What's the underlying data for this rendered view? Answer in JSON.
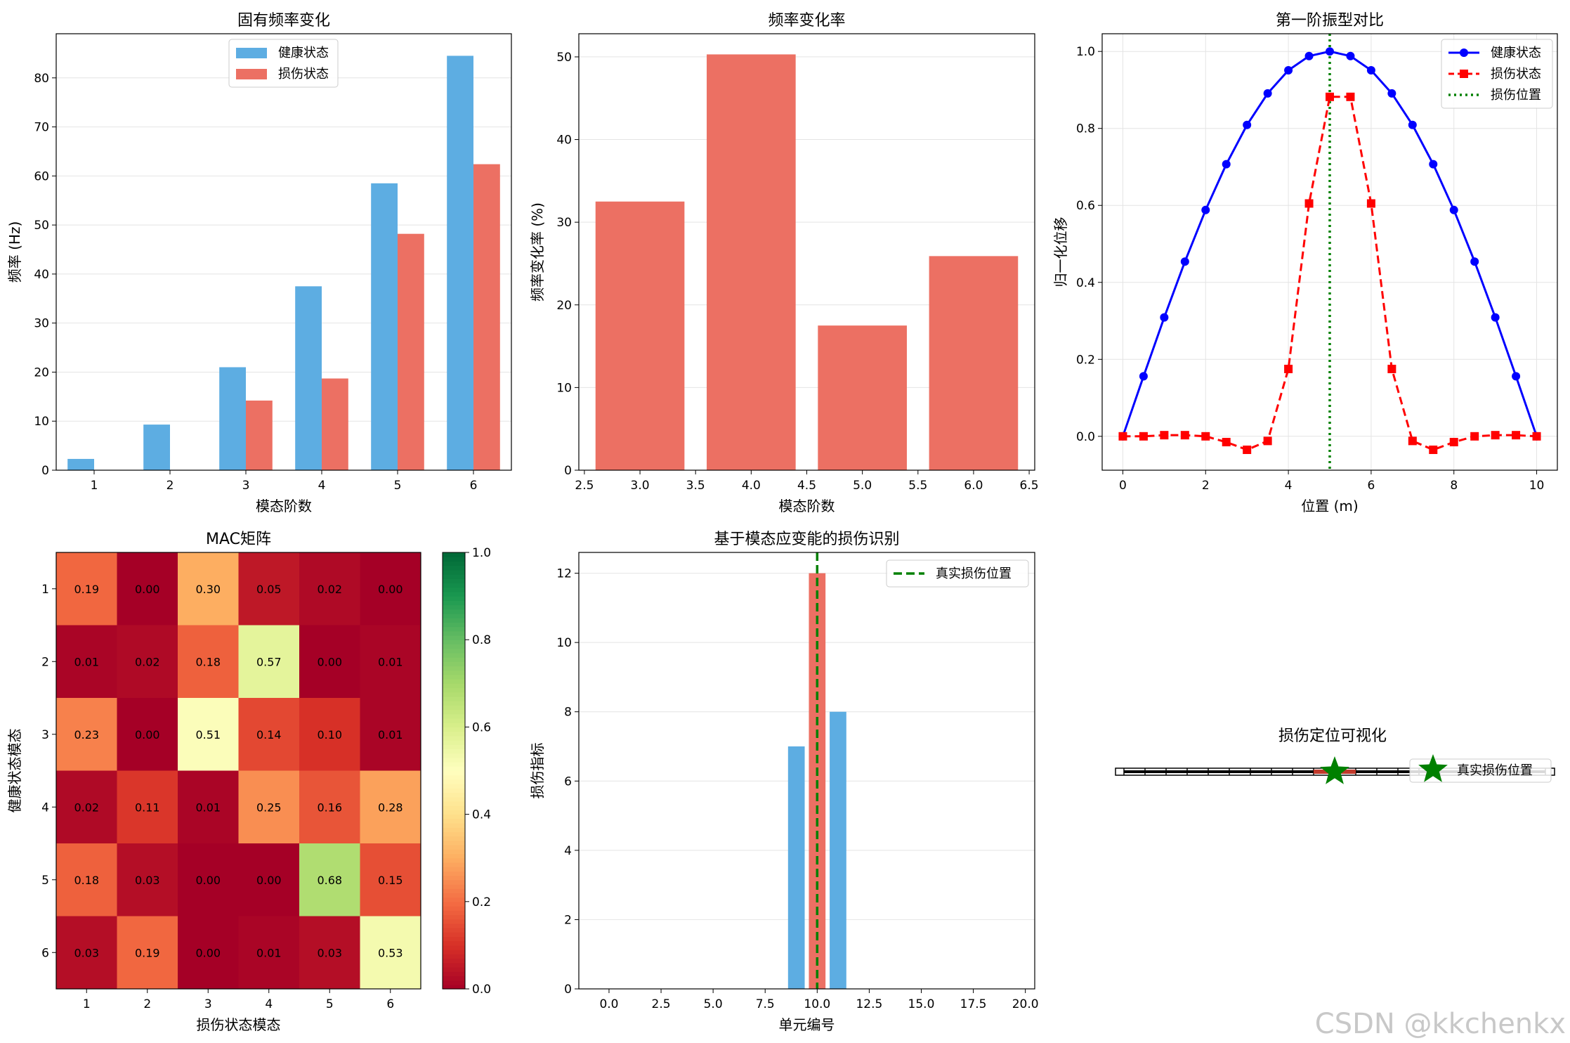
{
  "watermark": "CSDN @kkchenkx",
  "chart_data": [
    {
      "type": "bar",
      "title": "固有频率变化",
      "xlabel": "模态阶数",
      "ylabel": "频率 (Hz)",
      "categories": [
        "1",
        "2",
        "3",
        "4",
        "5",
        "6"
      ],
      "ylim": [
        0,
        89
      ],
      "yticks": [
        0,
        10,
        20,
        30,
        40,
        50,
        60,
        70,
        80
      ],
      "grid": "y",
      "legend": "top-center",
      "series": [
        {
          "name": "健康状态",
          "color": "#5DADE2",
          "values": [
            2.3,
            9.3,
            21.0,
            37.5,
            58.5,
            84.5
          ]
        },
        {
          "name": "损伤状态",
          "color": "#EC7063",
          "values": [
            0.0,
            0.0,
            14.2,
            18.7,
            48.2,
            62.4
          ]
        }
      ]
    },
    {
      "type": "bar",
      "title": "频率变化率",
      "xlabel": "模态阶数",
      "ylabel": "频率变化率 (%)",
      "x": [
        3,
        4,
        5,
        6
      ],
      "values": [
        32.5,
        50.3,
        17.5,
        25.9
      ],
      "color": "#EC7063",
      "xlim": [
        2.45,
        6.55
      ],
      "xticks": [
        "2.5",
        "3.0",
        "3.5",
        "4.0",
        "4.5",
        "5.0",
        "5.5",
        "6.0",
        "6.5"
      ],
      "ylim": [
        0,
        52.8
      ],
      "yticks": [
        0,
        10,
        20,
        30,
        40,
        50
      ],
      "grid": "y"
    },
    {
      "type": "line",
      "title": "第一阶振型对比",
      "xlabel": "位置 (m)",
      "ylabel": "归一化位移",
      "xlim": [
        -0.5,
        10.5
      ],
      "ylim": [
        -0.088,
        1.046
      ],
      "xticks": [
        0,
        2,
        4,
        6,
        8,
        10
      ],
      "yticks": [
        "0.0",
        "0.2",
        "0.4",
        "0.6",
        "0.8",
        "1.0"
      ],
      "grid": "both",
      "legend": "top-right",
      "x": [
        0,
        0.5,
        1,
        1.5,
        2,
        2.5,
        3,
        3.5,
        4,
        4.5,
        5,
        5.5,
        6,
        6.5,
        7,
        7.5,
        8,
        8.5,
        9,
        9.5,
        10
      ],
      "series": [
        {
          "name": "健康状态",
          "color": "#0000ff",
          "style": "solid",
          "marker": "circle",
          "values": [
            0.0,
            0.156,
            0.309,
            0.454,
            0.588,
            0.707,
            0.809,
            0.891,
            0.951,
            0.988,
            1.0,
            0.988,
            0.951,
            0.891,
            0.809,
            0.707,
            0.588,
            0.454,
            0.309,
            0.156,
            0.0
          ]
        },
        {
          "name": "损伤状态",
          "color": "#ff0000",
          "style": "dashed",
          "marker": "square",
          "values": [
            0.0,
            0.0,
            0.003,
            0.003,
            0.0,
            -0.015,
            -0.035,
            -0.012,
            0.175,
            0.605,
            0.882,
            0.882,
            0.605,
            0.175,
            -0.012,
            -0.035,
            -0.015,
            0.0,
            0.003,
            0.003,
            0.0
          ]
        },
        {
          "name": "损伤位置",
          "color": "#008000",
          "style": "dotted",
          "vline": 5
        }
      ]
    },
    {
      "type": "heatmap",
      "title": "MAC矩阵",
      "xlabel": "损伤状态模态",
      "ylabel": "健康状态模态",
      "xticks": [
        "1",
        "2",
        "3",
        "4",
        "5",
        "6"
      ],
      "yticks": [
        "1",
        "2",
        "3",
        "4",
        "5",
        "6"
      ],
      "colormap": "RdYlGn",
      "clim": [
        0,
        1
      ],
      "colorbar_ticks": [
        "0.0",
        "0.2",
        "0.4",
        "0.6",
        "0.8",
        "1.0"
      ],
      "values": [
        [
          0.19,
          0.0,
          0.3,
          0.05,
          0.02,
          0.0
        ],
        [
          0.01,
          0.02,
          0.18,
          0.57,
          0.0,
          0.01
        ],
        [
          0.23,
          0.0,
          0.51,
          0.14,
          0.1,
          0.01
        ],
        [
          0.02,
          0.11,
          0.01,
          0.25,
          0.16,
          0.28
        ],
        [
          0.18,
          0.03,
          0.0,
          0.0,
          0.68,
          0.15
        ],
        [
          0.03,
          0.19,
          0.0,
          0.01,
          0.03,
          0.53
        ]
      ],
      "labels": [
        [
          "0.19",
          "0.00",
          "0.30",
          "0.05",
          "0.02",
          "0.00"
        ],
        [
          "0.01",
          "0.02",
          "0.18",
          "0.57",
          "0.00",
          "0.01"
        ],
        [
          "0.23",
          "0.00",
          "0.51",
          "0.14",
          "0.10",
          "0.01"
        ],
        [
          "0.02",
          "0.11",
          "0.01",
          "0.25",
          "0.16",
          "0.28"
        ],
        [
          "0.18",
          "0.03",
          "0.00",
          "0.00",
          "0.68",
          "0.15"
        ],
        [
          "0.03",
          "0.19",
          "0.00",
          "0.01",
          "0.03",
          "0.53"
        ]
      ]
    },
    {
      "type": "bar",
      "title": "基于模态应变能的损伤识别",
      "xlabel": "单元编号",
      "ylabel": "损伤指标",
      "xlim": [
        -1.45,
        20.45
      ],
      "xticks": [
        "0.0",
        "2.5",
        "5.0",
        "7.5",
        "10.0",
        "12.5",
        "15.0",
        "17.5",
        "20.0"
      ],
      "ylim": [
        0,
        12.6
      ],
      "yticks": [
        0,
        2,
        4,
        6,
        8,
        10,
        12
      ],
      "grid": "y",
      "legend": "top-right",
      "bars": [
        {
          "x": 9,
          "value": 7.0,
          "color": "#5DADE2"
        },
        {
          "x": 10,
          "value": 12.0,
          "color": "#EC7063"
        },
        {
          "x": 11,
          "value": 8.0,
          "color": "#5DADE2"
        }
      ],
      "vline": {
        "x": 10,
        "name": "真实损伤位置",
        "color": "#008000",
        "style": "dashed"
      }
    },
    {
      "type": "other",
      "title": "损伤定位可视化",
      "beam_length": 10,
      "segments": 20,
      "damaged_segment": [
        4.5,
        5.5
      ],
      "marker": {
        "x": 5,
        "name": "真实损伤位置",
        "color": "#008000",
        "shape": "star"
      }
    }
  ]
}
